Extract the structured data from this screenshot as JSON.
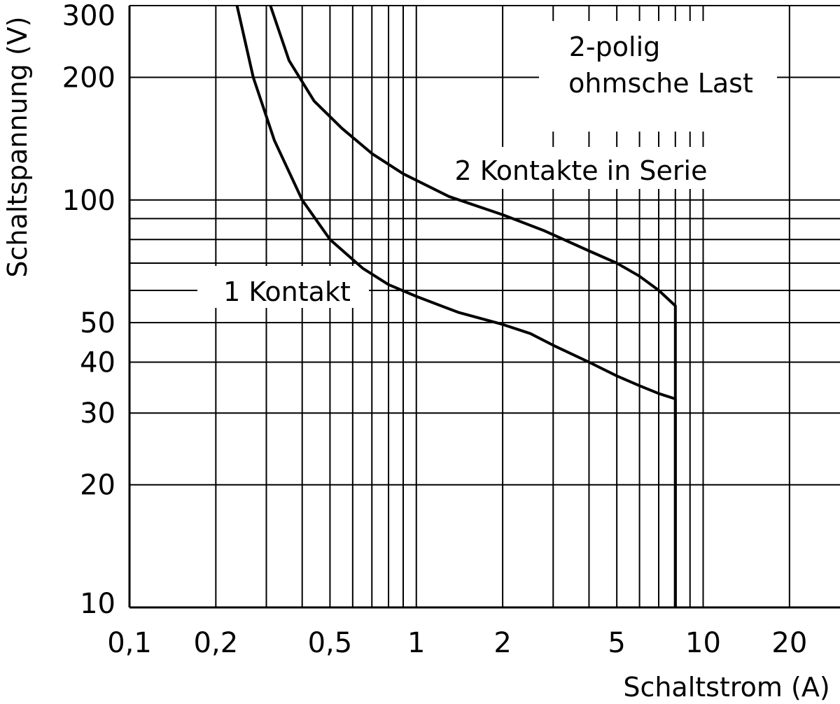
{
  "chart_data": {
    "type": "line",
    "title": "",
    "xlabel": "Schaltstrom (A)",
    "ylabel": "Schaltspannung (V)",
    "x_scale": "log",
    "y_scale": "log",
    "xlim": [
      0.1,
      30
    ],
    "ylim": [
      10,
      300
    ],
    "x_tick_values": [
      0.1,
      0.2,
      0.5,
      1,
      2,
      5,
      10,
      20
    ],
    "x_tick_labels": [
      "0,1",
      "0,2",
      "0,5",
      "1",
      "2",
      "5",
      "10",
      "20"
    ],
    "y_tick_values": [
      10,
      20,
      30,
      40,
      50,
      100,
      200,
      300
    ],
    "y_tick_labels": [
      "10",
      "20",
      "30",
      "40",
      "50",
      "100",
      "200",
      "300"
    ],
    "grid": true,
    "annotations": {
      "top": [
        "2-polig",
        "ohmsche Last"
      ],
      "series_2": "2 Kontakte in Serie",
      "series_1": "1 Kontakt"
    },
    "series": [
      {
        "name": "1 Kontakt",
        "points": [
          [
            0.237,
            300
          ],
          [
            0.27,
            200
          ],
          [
            0.32,
            140
          ],
          [
            0.4,
            100
          ],
          [
            0.5,
            80
          ],
          [
            0.65,
            68
          ],
          [
            0.8,
            62
          ],
          [
            1.0,
            58
          ],
          [
            1.4,
            53
          ],
          [
            2.0,
            49.5
          ],
          [
            2.5,
            47
          ],
          [
            3.0,
            44
          ],
          [
            4.0,
            40
          ],
          [
            5.0,
            37
          ],
          [
            6.0,
            35
          ],
          [
            7.0,
            33.5
          ],
          [
            8.0,
            32.5
          ],
          [
            8.0,
            10
          ]
        ]
      },
      {
        "name": "2 Kontakte in Serie",
        "points": [
          [
            0.31,
            300
          ],
          [
            0.36,
            220
          ],
          [
            0.44,
            175
          ],
          [
            0.55,
            150
          ],
          [
            0.7,
            130
          ],
          [
            0.9,
            116
          ],
          [
            1.3,
            102
          ],
          [
            2.0,
            92
          ],
          [
            2.8,
            84
          ],
          [
            4.0,
            75
          ],
          [
            5.0,
            70
          ],
          [
            6.0,
            65
          ],
          [
            7.0,
            60
          ],
          [
            8.0,
            55
          ],
          [
            8.0,
            10
          ]
        ]
      }
    ]
  }
}
